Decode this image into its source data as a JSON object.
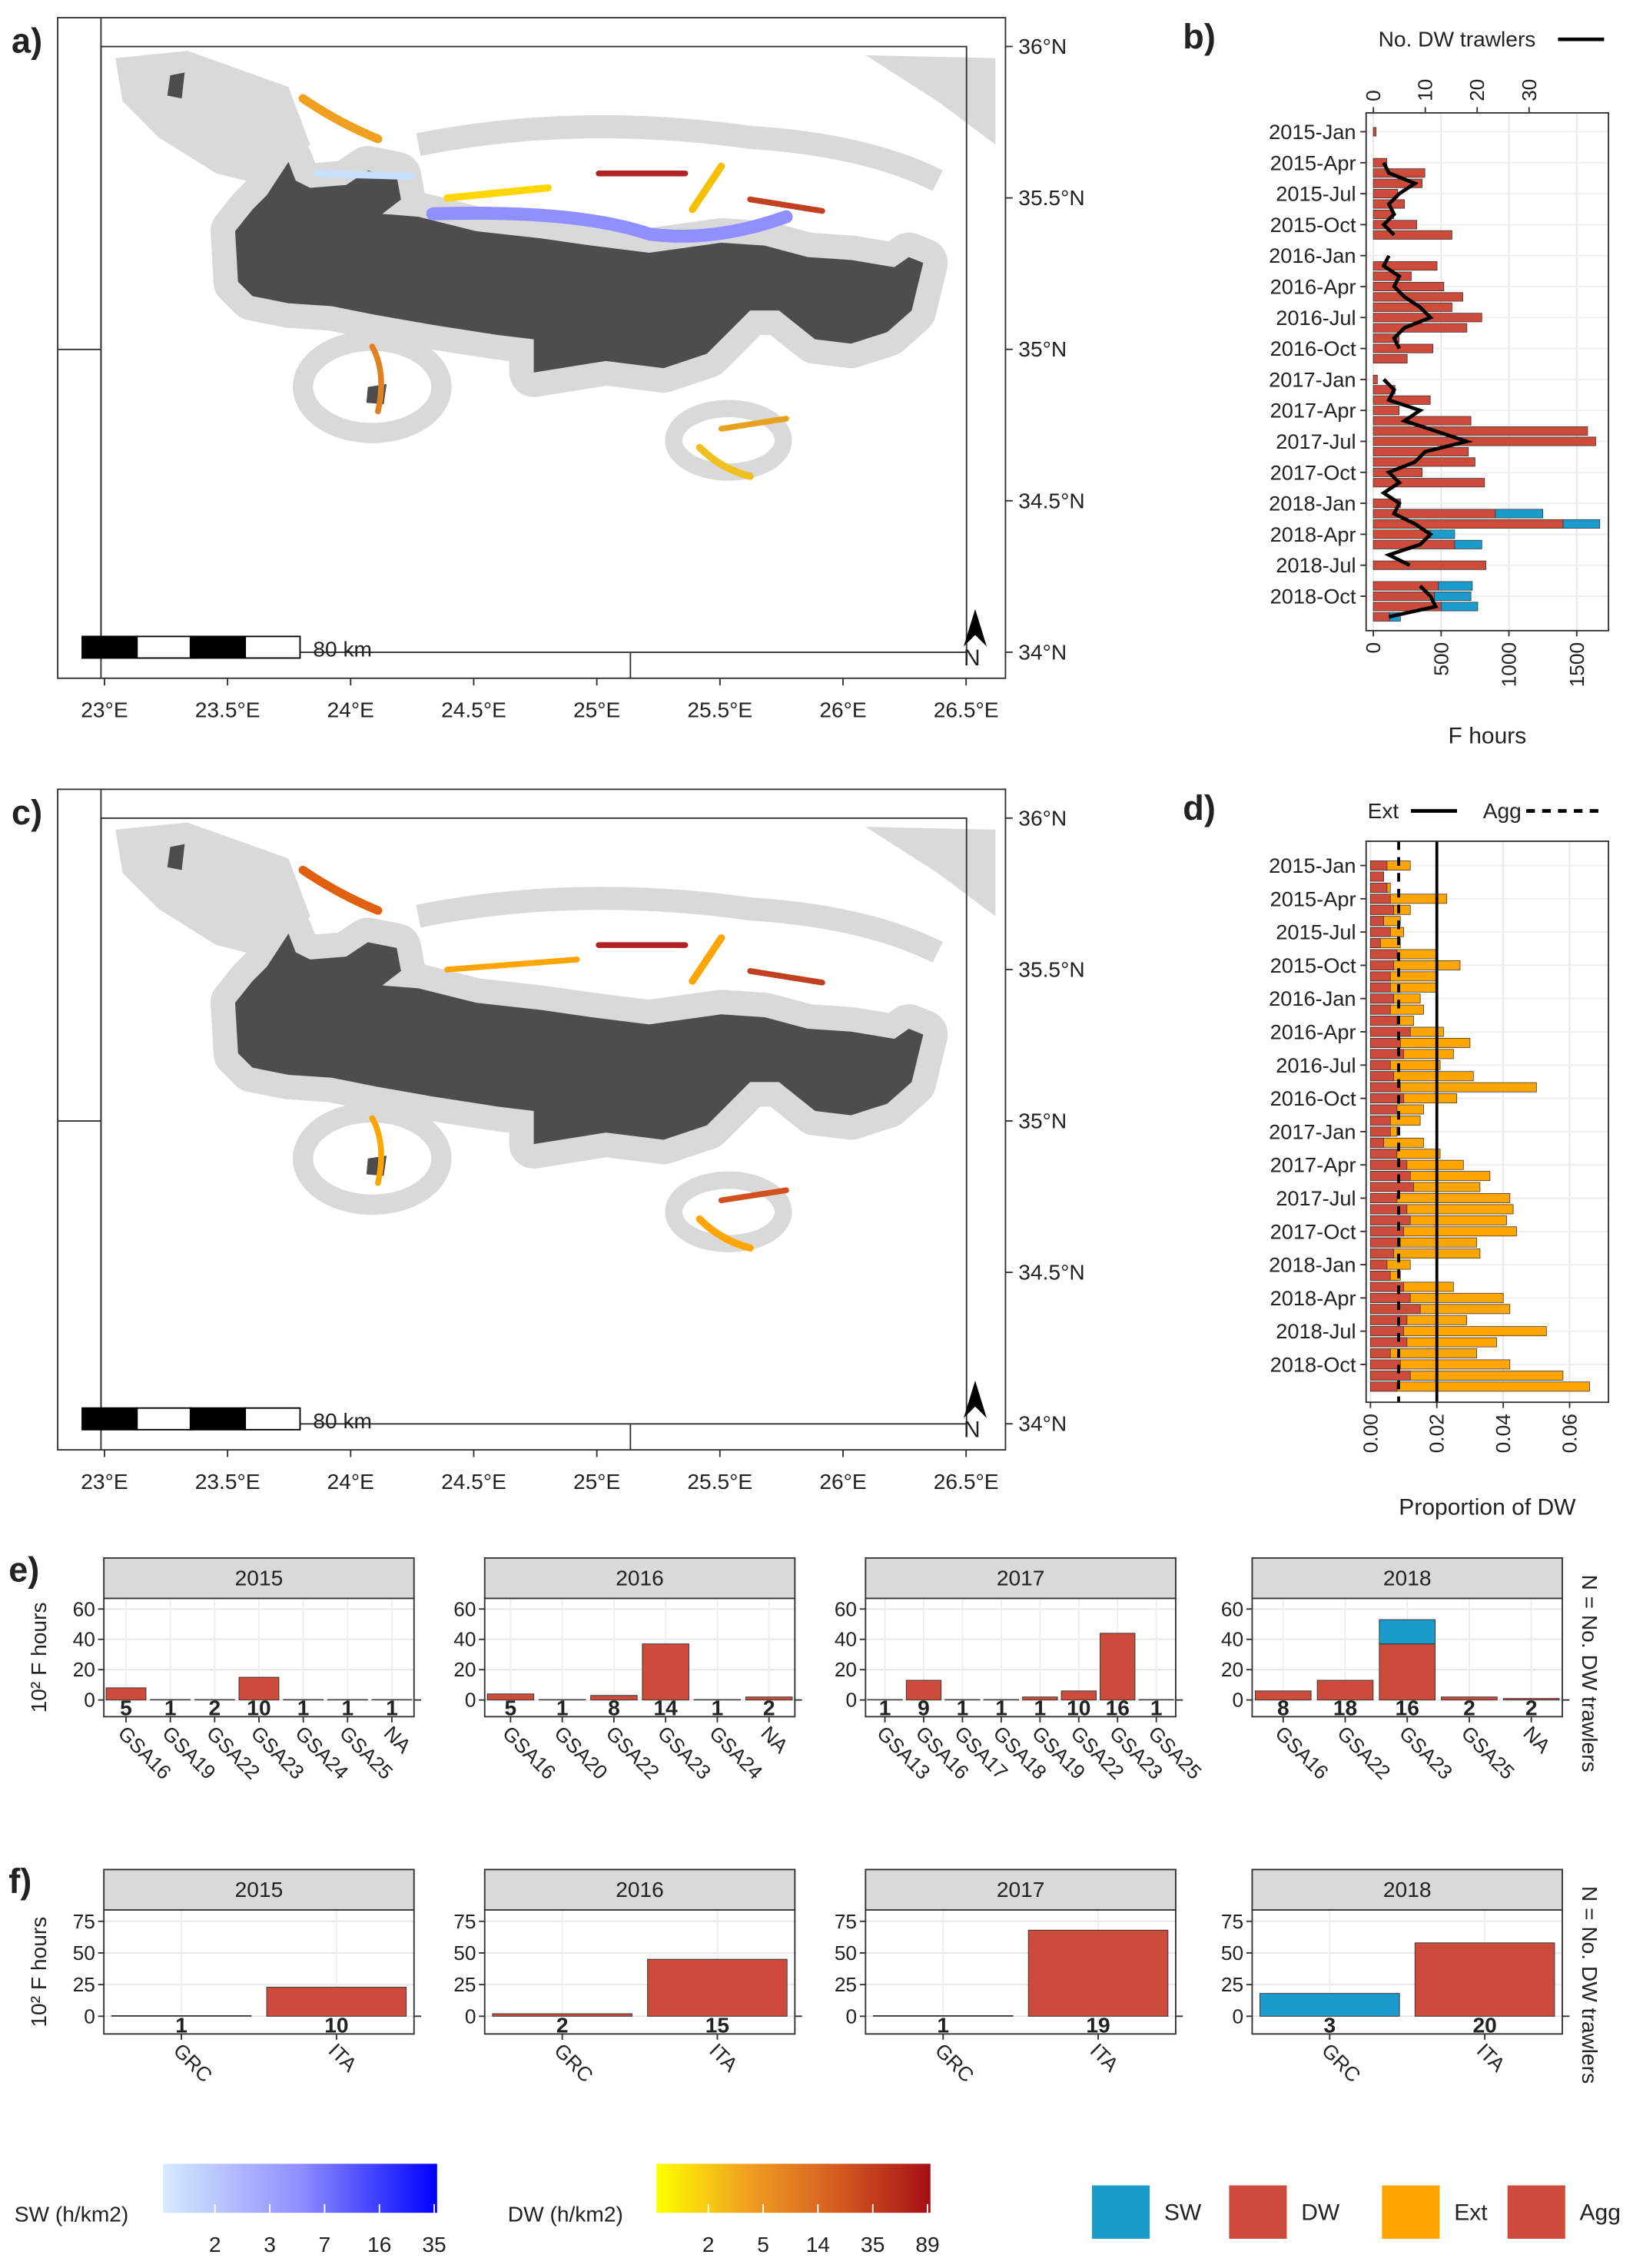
{
  "chart_data": [
    {
      "type": "map",
      "panel": "a)",
      "xlim": [
        22.81,
        26.66
      ],
      "ylim": [
        33.914,
        36.095
      ],
      "xticks": [
        {
          "value": 23,
          "label": "23°E"
        },
        {
          "value": 23.5,
          "label": "23.5°E"
        },
        {
          "value": 24,
          "label": "24°E"
        },
        {
          "value": 24.5,
          "label": "24.5°E"
        },
        {
          "value": 25,
          "label": "25°E"
        },
        {
          "value": 25.5,
          "label": "25.5°E"
        },
        {
          "value": 26,
          "label": "26°E"
        },
        {
          "value": 26.5,
          "label": "26.5°E"
        }
      ],
      "yticks": [
        {
          "value": 34,
          "label": "34°N"
        },
        {
          "value": 34.5,
          "label": "34.5°N"
        },
        {
          "value": 35,
          "label": "35°N"
        },
        {
          "value": 35.5,
          "label": "35.5°N"
        },
        {
          "value": 36,
          "label": "36°N"
        }
      ],
      "scale_bar": "80 km",
      "north": "N"
    },
    {
      "type": "bar",
      "panel": "b)",
      "stacked": true,
      "xlabel": "F hours",
      "xlim": [
        -53,
        1734
      ],
      "xticks": [
        0,
        500,
        1000,
        1500
      ],
      "categories": [
        "2015-Jan",
        null,
        null,
        "2015-Apr",
        null,
        null,
        "2015-Jul",
        null,
        null,
        "2015-Oct",
        null,
        null,
        "2016-Jan",
        null,
        null,
        "2016-Apr",
        null,
        null,
        "2016-Jul",
        null,
        null,
        "2016-Oct",
        null,
        null,
        "2017-Jan",
        null,
        null,
        "2017-Apr",
        null,
        null,
        "2017-Jul",
        null,
        null,
        "2017-Oct",
        null,
        null,
        "2018-Jan",
        null,
        null,
        "2018-Apr",
        null,
        null,
        "2018-Jul",
        null,
        null,
        "2018-Oct",
        null,
        null
      ],
      "series": [
        {
          "color": "#cd4b3a",
          "values": [
            20,
            0,
            0,
            100,
            380,
            360,
            180,
            230,
            150,
            320,
            580,
            0,
            0,
            470,
            280,
            520,
            660,
            580,
            800,
            690,
            190,
            440,
            250,
            0,
            30,
            160,
            420,
            190,
            720,
            1580,
            1640,
            700,
            750,
            360,
            820,
            0,
            200,
            900,
            1400,
            420,
            600,
            0,
            830,
            0,
            480,
            450,
            500,
            120
          ]
        },
        {
          "color": "#1a9bcb",
          "values": [
            0,
            0,
            0,
            0,
            0,
            0,
            0,
            0,
            0,
            0,
            0,
            0,
            0,
            0,
            0,
            0,
            0,
            0,
            0,
            0,
            0,
            0,
            0,
            0,
            0,
            0,
            0,
            0,
            0,
            0,
            0,
            0,
            0,
            0,
            0,
            0,
            0,
            350,
            270,
            180,
            200,
            0,
            0,
            0,
            250,
            270,
            270,
            80
          ]
        }
      ],
      "line": {
        "name": "No. DW trawlers",
        "color": "#000000",
        "values": [
          null,
          null,
          null,
          2,
          3,
          8,
          5,
          3,
          4,
          2,
          4,
          null,
          3,
          2,
          5,
          4,
          6,
          9,
          11,
          6,
          4,
          5,
          null,
          null,
          2,
          4,
          3,
          9,
          6,
          12,
          18,
          10,
          8,
          3,
          5,
          2,
          5,
          4,
          8,
          11,
          9,
          3,
          7,
          null,
          9,
          11,
          12,
          3
        ]
      },
      "x2lim": [
        -1.4,
        45.3
      ],
      "x2ticks": [
        0,
        10,
        20,
        30
      ]
    },
    {
      "type": "map",
      "panel": "c)",
      "xlim": [
        22.81,
        26.66
      ],
      "ylim": [
        33.914,
        36.095
      ],
      "xticks": [
        {
          "value": 23,
          "label": "23°E"
        },
        {
          "value": 23.5,
          "label": "23.5°E"
        },
        {
          "value": 24,
          "label": "24°E"
        },
        {
          "value": 24.5,
          "label": "24.5°E"
        },
        {
          "value": 25,
          "label": "25°E"
        },
        {
          "value": 25.5,
          "label": "25.5°E"
        },
        {
          "value": 26,
          "label": "26°E"
        },
        {
          "value": 26.5,
          "label": "26.5°E"
        }
      ],
      "yticks": [
        {
          "value": 34,
          "label": "34°N"
        },
        {
          "value": 34.5,
          "label": "34.5°N"
        },
        {
          "value": 35,
          "label": "35°N"
        },
        {
          "value": 35.5,
          "label": "35.5°N"
        },
        {
          "value": 36,
          "label": "36°N"
        }
      ],
      "scale_bar": "80 km",
      "north": "N"
    },
    {
      "type": "bar",
      "panel": "d)",
      "stacked": false,
      "xlabel": "Proportion of DW",
      "xlim": [
        -0.0013,
        0.0717
      ],
      "xticks": [
        {
          "value": 0,
          "label": "0.00"
        },
        {
          "value": 0.02,
          "label": "0.02"
        },
        {
          "value": 0.04,
          "label": "0.04"
        },
        {
          "value": 0.06,
          "label": "0.06"
        }
      ],
      "categories": [
        "2015-Jan",
        null,
        null,
        "2015-Apr",
        null,
        null,
        "2015-Jul",
        null,
        null,
        "2015-Oct",
        null,
        null,
        "2016-Jan",
        null,
        null,
        "2016-Apr",
        null,
        null,
        "2016-Jul",
        null,
        null,
        "2016-Oct",
        null,
        null,
        "2017-Jan",
        null,
        null,
        "2017-Apr",
        null,
        null,
        "2017-Jul",
        null,
        null,
        "2017-Oct",
        null,
        null,
        "2018-Jan",
        null,
        null,
        "2018-Apr",
        null,
        null,
        "2018-Jul",
        null,
        null,
        "2018-Oct",
        null,
        null
      ],
      "series": [
        {
          "color": "#ffa500",
          "values": [
            0.012,
            0.004,
            0.006,
            0.023,
            0.012,
            0.009,
            0.01,
            0.009,
            0.02,
            0.027,
            0.02,
            0.02,
            0.015,
            0.016,
            0.013,
            0.022,
            0.03,
            0.025,
            0.021,
            0.031,
            0.05,
            0.026,
            0.016,
            0.015,
            0.008,
            0.016,
            0.021,
            0.028,
            0.036,
            0.033,
            0.042,
            0.043,
            0.041,
            0.044,
            0.032,
            0.033,
            0.012,
            0.009,
            0.025,
            0.04,
            0.042,
            0.029,
            0.053,
            0.038,
            0.032,
            0.042,
            0.058,
            0.066
          ]
        },
        {
          "color": "#cd4b3a",
          "values": [
            0.005,
            0.004,
            0.005,
            0.006,
            0.007,
            0.004,
            0.006,
            0.003,
            0.008,
            0.007,
            0.006,
            0.006,
            0.007,
            0.006,
            0.008,
            0.012,
            0.009,
            0.01,
            0.006,
            0.007,
            0.009,
            0.01,
            0.008,
            0.006,
            0.006,
            0.004,
            0.008,
            0.011,
            0.012,
            0.013,
            0.008,
            0.011,
            0.012,
            0.01,
            0.009,
            0.007,
            0.005,
            0.006,
            0.01,
            0.012,
            0.015,
            0.011,
            0.01,
            0.011,
            0.006,
            0.009,
            0.012,
            0.008
          ]
        }
      ],
      "ref_lines": [
        {
          "name": "Ext",
          "value": 0.02,
          "dashed": false
        },
        {
          "name": "Agg",
          "value": 0.0085,
          "dashed": true
        }
      ]
    },
    {
      "type": "facet_bar",
      "panel": "e)",
      "ylabel": "10² F hours",
      "right_label": "N = No. DW trawlers",
      "ylim": [
        -11,
        67
      ],
      "yticks": [
        0,
        20,
        40,
        60
      ],
      "facets": [
        {
          "title": "2015",
          "categories": [
            "GSA16",
            "GSA19",
            "GSA22",
            "GSA23",
            "GSA24",
            "GSA25",
            "NA"
          ],
          "series": [
            {
              "color": "#cd4b3a",
              "values": [
                8,
                0.3,
                0.3,
                15,
                0.3,
                0.3,
                0.3
              ]
            },
            {
              "color": "#1a9bcb",
              "values": [
                0,
                0,
                0,
                0,
                0,
                0,
                0
              ]
            }
          ],
          "n": [
            5,
            1,
            2,
            10,
            1,
            1,
            1
          ]
        },
        {
          "title": "2016",
          "categories": [
            "GSA16",
            "GSA20",
            "GSA22",
            "GSA23",
            "GSA24",
            "NA"
          ],
          "series": [
            {
              "color": "#cd4b3a",
              "values": [
                4,
                0.3,
                3,
                37,
                0.3,
                2
              ]
            },
            {
              "color": "#1a9bcb",
              "values": [
                0,
                0,
                0,
                0,
                0,
                0
              ]
            }
          ],
          "n": [
            5,
            1,
            8,
            14,
            1,
            2
          ]
        },
        {
          "title": "2017",
          "categories": [
            "GSA13",
            "GSA16",
            "GSA17",
            "GSA18",
            "GSA19",
            "GSA22",
            "GSA23",
            "GSA25"
          ],
          "series": [
            {
              "color": "#cd4b3a",
              "values": [
                0.3,
                13,
                0.3,
                0.3,
                2,
                6,
                44,
                0.3
              ]
            },
            {
              "color": "#1a9bcb",
              "values": [
                0,
                0,
                0,
                0,
                0,
                0,
                0,
                0
              ]
            }
          ],
          "n": [
            1,
            9,
            1,
            1,
            1,
            10,
            16,
            1
          ]
        },
        {
          "title": "2018",
          "categories": [
            "GSA16",
            "GSA22",
            "GSA23",
            "GSA25",
            "NA"
          ],
          "series": [
            {
              "color": "#cd4b3a",
              "values": [
                6,
                13,
                37,
                2,
                1
              ]
            },
            {
              "color": "#1a9bcb",
              "values": [
                0,
                0,
                16,
                0,
                0
              ]
            }
          ],
          "n": [
            8,
            18,
            16,
            2,
            2
          ]
        }
      ]
    },
    {
      "type": "facet_bar",
      "panel": "f)",
      "ylabel": "10² F hours",
      "right_label": "N = No. DW trawlers",
      "ylim": [
        -14,
        84
      ],
      "yticks": [
        0,
        25,
        50,
        75
      ],
      "facets": [
        {
          "title": "2015",
          "categories": [
            "GRC",
            "ITA"
          ],
          "series": [
            {
              "color": "#cd4b3a",
              "values": [
                0.5,
                23
              ]
            },
            {
              "color": "#1a9bcb",
              "values": [
                0,
                0
              ]
            }
          ],
          "n": [
            1,
            10
          ]
        },
        {
          "title": "2016",
          "categories": [
            "GRC",
            "ITA"
          ],
          "series": [
            {
              "color": "#cd4b3a",
              "values": [
                2,
                45
              ]
            },
            {
              "color": "#1a9bcb",
              "values": [
                0,
                0
              ]
            }
          ],
          "n": [
            2,
            15
          ]
        },
        {
          "title": "2017",
          "categories": [
            "GRC",
            "ITA"
          ],
          "series": [
            {
              "color": "#cd4b3a",
              "values": [
                0.5,
                68
              ]
            },
            {
              "color": "#1a9bcb",
              "values": [
                0,
                0
              ]
            }
          ],
          "n": [
            1,
            19
          ]
        },
        {
          "title": "2018",
          "categories": [
            "GRC",
            "ITA"
          ],
          "series": [
            {
              "color": "#cd4b3a",
              "values": [
                0,
                58
              ]
            },
            {
              "color": "#1a9bcb",
              "values": [
                18,
                0
              ]
            }
          ],
          "n": [
            3,
            20
          ]
        }
      ]
    }
  ],
  "legends": {
    "sw_scale": {
      "title": "SW (h/km2)",
      "ticks": [
        2,
        3,
        7,
        16,
        35
      ],
      "colors": [
        "#d6eaff",
        "#8f8fff",
        "#0000ff"
      ]
    },
    "dw_scale": {
      "title": "DW (h/km2)",
      "ticks": [
        2,
        5,
        14,
        35,
        89
      ],
      "colors": [
        "#ffff00",
        "#f0a020",
        "#d45a20",
        "#a50f15"
      ]
    },
    "keys": [
      {
        "name": "SW",
        "color": "#1a9bcb"
      },
      {
        "name": "DW",
        "color": "#cd4b3a"
      },
      {
        "name": "Ext",
        "color": "#ffa500"
      },
      {
        "name": "Agg",
        "color": "#cd4b3a"
      }
    ]
  }
}
